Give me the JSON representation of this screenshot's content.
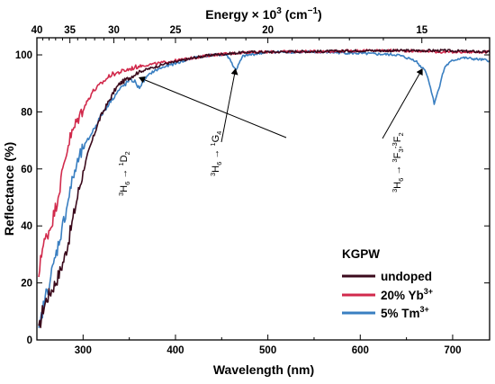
{
  "chart_data": {
    "type": "line",
    "xlabel": "Wavelength (nm)",
    "ylabel": "Reflectance (%)",
    "top_axis_label": "Energy × 10",
    "top_axis_label_exp": "3",
    "top_axis_unit": " (cm",
    "top_axis_unit_exp": "−1",
    "top_axis_unit_close": ")",
    "xlim": [
      250,
      740
    ],
    "ylim": [
      0,
      106
    ],
    "x_ticks": [
      300,
      400,
      500,
      600,
      700
    ],
    "x_tick_labels": [
      "300",
      "400",
      "500",
      "600",
      "700"
    ],
    "y_ticks": [
      0,
      20,
      40,
      60,
      80,
      100
    ],
    "y_tick_labels": [
      "0",
      "20",
      "40",
      "60",
      "80",
      "100"
    ],
    "top_ticks": [
      40,
      35,
      30,
      25,
      20,
      15
    ],
    "top_tick_labels": [
      "40",
      "35",
      "30",
      "25",
      "20",
      "15"
    ],
    "legend": {
      "title": "KGPW",
      "position": "bottom-right",
      "entries": [
        "undoped",
        "20% Yb",
        "5% Tm"
      ],
      "entry_sup": [
        "",
        "3+",
        "3+"
      ]
    },
    "annotations": [
      {
        "id": "d2",
        "parts": [
          "3",
          "H",
          "6",
          " → ",
          "1",
          "D",
          "2"
        ],
        "arrow_to": [
          361,
          92
        ]
      },
      {
        "id": "g4",
        "parts": [
          "3",
          "H",
          "6",
          " → ",
          "1",
          "G",
          "4"
        ],
        "arrow_to": [
          465,
          95
        ]
      },
      {
        "id": "f3f2",
        "parts": [
          "3",
          "H",
          "6",
          " → ",
          "3",
          "F",
          "3",
          ";",
          "3",
          "F",
          "2"
        ],
        "arrow_to": [
          667,
          95
        ]
      }
    ],
    "series": [
      {
        "name": "undoped",
        "color": "#3b0a1c",
        "x": [
          252,
          256,
          260,
          265,
          270,
          275,
          280,
          285,
          290,
          295,
          300,
          305,
          310,
          315,
          320,
          325,
          330,
          335,
          340,
          345,
          350,
          360,
          370,
          380,
          390,
          400,
          420,
          440,
          460,
          480,
          500,
          530,
          560,
          600,
          640,
          670,
          690,
          710,
          740
        ],
        "y": [
          3,
          10,
          14,
          17,
          20,
          24,
          29,
          36,
          44,
          52,
          59,
          65,
          70,
          75,
          79,
          82,
          85,
          88,
          90,
          91,
          92,
          94,
          95,
          96,
          97,
          97.5,
          99,
          100,
          100.5,
          101,
          101,
          101.2,
          101.2,
          101.5,
          101.5,
          101.5,
          101.5,
          101.3,
          101
        ]
      },
      {
        "name": "20% Yb",
        "color": "#d12a4c",
        "x": [
          252,
          254,
          257,
          260,
          265,
          270,
          275,
          280,
          285,
          290,
          295,
          300,
          305,
          310,
          320,
          330,
          340,
          350,
          360,
          380,
          400,
          420,
          440,
          460,
          480,
          500,
          530,
          560,
          600,
          640,
          670,
          690,
          710,
          740
        ],
        "y": [
          20,
          30,
          33,
          36,
          40,
          46,
          54,
          63,
          70,
          74,
          78,
          81,
          84,
          87,
          90,
          93,
          94,
          95,
          96,
          97,
          98,
          99,
          100,
          100.5,
          101,
          101,
          101.2,
          101.2,
          101.5,
          101.5,
          101.3,
          101,
          101,
          101
        ]
      },
      {
        "name": "5% Tm",
        "color": "#3a7fc1",
        "x": [
          252,
          256,
          260,
          265,
          270,
          275,
          280,
          285,
          290,
          295,
          300,
          310,
          320,
          330,
          340,
          350,
          355,
          358,
          361,
          364,
          368,
          375,
          385,
          400,
          420,
          440,
          455,
          460,
          463,
          466,
          469,
          473,
          480,
          500,
          530,
          560,
          600,
          640,
          660,
          665,
          670,
          675,
          680,
          685,
          688,
          692,
          700,
          710,
          740
        ],
        "y": [
          2,
          10,
          16,
          22,
          29,
          36,
          43,
          51,
          58,
          63,
          67,
          73,
          79,
          84,
          88,
          91,
          91,
          89.5,
          88.5,
          90,
          92,
          94,
          95.5,
          97,
          99,
          100,
          100,
          98,
          95.5,
          95,
          97,
          99.5,
          100,
          101,
          101,
          101,
          100.5,
          100,
          98,
          96,
          95,
          90,
          83,
          88,
          92,
          96,
          98,
          99,
          98
        ]
      }
    ]
  }
}
